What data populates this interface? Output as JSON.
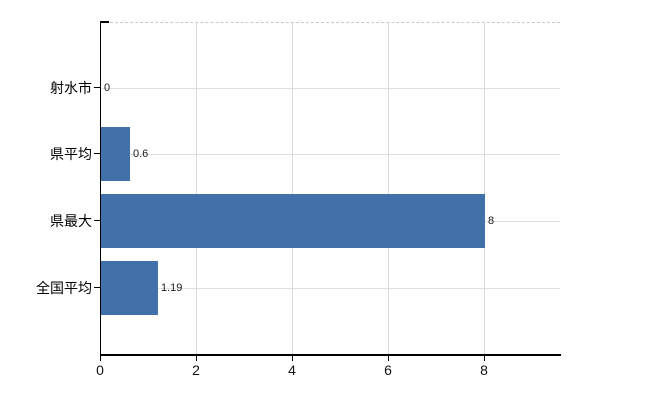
{
  "chart_data": {
    "type": "bar",
    "orientation": "horizontal",
    "categories": [
      "射水市",
      "県平均",
      "県最大",
      "全国平均"
    ],
    "values": [
      0,
      0.6,
      8,
      1.19
    ],
    "value_labels": [
      "0",
      "0.6",
      "8",
      "1.19"
    ],
    "x_ticks": [
      0,
      2,
      4,
      6,
      8
    ],
    "x_tick_labels": [
      "0",
      "2",
      "4",
      "6",
      "8"
    ],
    "xlim": [
      0,
      9.6
    ],
    "grid": true,
    "legend": "none",
    "title": "",
    "bar_color": "#4271aa",
    "axis_color": "#000000",
    "vertical_gridline_color": "#d9d9d9",
    "horizontal_gridline_color": "#dce3dc",
    "top_border_style": "dashed",
    "top_border_color": "#c9c9c9",
    "background_color": "#ffffff"
  }
}
